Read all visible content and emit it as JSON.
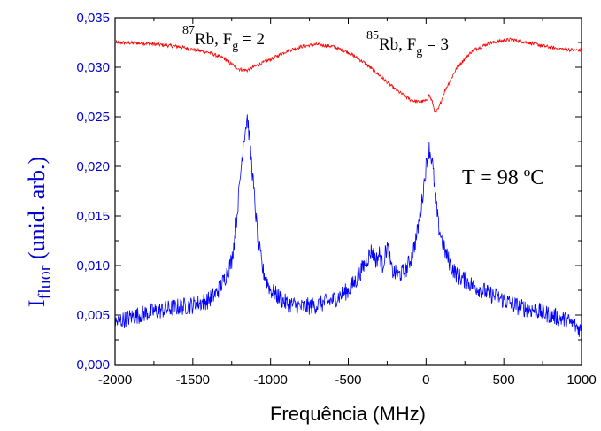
{
  "chart_data": {
    "type": "line",
    "title": "",
    "xlabel": "Frequência (MHz)",
    "ylabel": {
      "main": "I",
      "subscript": "fluor",
      "rest": " (unid. arb.)"
    },
    "xlim": [
      -2000,
      1000
    ],
    "ylim": [
      0.0,
      0.035
    ],
    "x_ticks": [
      {
        "value": -2000,
        "label": "-2000"
      },
      {
        "value": -1500,
        "label": "-1500"
      },
      {
        "value": -1000,
        "label": "-1000"
      },
      {
        "value": -500,
        "label": "-500"
      },
      {
        "value": 0,
        "label": "0"
      },
      {
        "value": 500,
        "label": "500"
      },
      {
        "value": 1000,
        "label": "1000"
      }
    ],
    "y_ticks": [
      {
        "value": 0.0,
        "label": "0,000"
      },
      {
        "value": 0.005,
        "label": "0,005"
      },
      {
        "value": 0.01,
        "label": "0,010"
      },
      {
        "value": 0.015,
        "label": "0,015"
      },
      {
        "value": 0.02,
        "label": "0,020"
      },
      {
        "value": 0.025,
        "label": "0,025"
      },
      {
        "value": 0.03,
        "label": "0,030"
      },
      {
        "value": 0.035,
        "label": "0,035"
      }
    ],
    "grid": false,
    "series": [
      {
        "color": "#ff0000",
        "points": [
          [
            -2000,
            0.0325
          ],
          [
            -1800,
            0.0324
          ],
          [
            -1600,
            0.0321
          ],
          [
            -1400,
            0.0315
          ],
          [
            -1300,
            0.0309
          ],
          [
            -1250,
            0.0303
          ],
          [
            -1200,
            0.0298
          ],
          [
            -1150,
            0.0297
          ],
          [
            -1100,
            0.0301
          ],
          [
            -1000,
            0.0308
          ],
          [
            -900,
            0.0316
          ],
          [
            -800,
            0.0321
          ],
          [
            -700,
            0.0323
          ],
          [
            -600,
            0.0321
          ],
          [
            -500,
            0.0315
          ],
          [
            -400,
            0.0305
          ],
          [
            -300,
            0.0292
          ],
          [
            -200,
            0.0278
          ],
          [
            -100,
            0.0267
          ],
          [
            -50,
            0.0265
          ],
          [
            0,
            0.0266
          ],
          [
            20,
            0.0272
          ],
          [
            40,
            0.0265
          ],
          [
            60,
            0.0254
          ],
          [
            80,
            0.0258
          ],
          [
            120,
            0.0276
          ],
          [
            200,
            0.03
          ],
          [
            300,
            0.0317
          ],
          [
            400,
            0.0324
          ],
          [
            500,
            0.0327
          ],
          [
            550,
            0.0328
          ],
          [
            650,
            0.0325
          ],
          [
            800,
            0.032
          ],
          [
            900,
            0.0318
          ],
          [
            1000,
            0.0317
          ]
        ]
      },
      {
        "color": "#0000ff",
        "points": [
          [
            -2000,
            0.0042
          ],
          [
            -1900,
            0.0048
          ],
          [
            -1800,
            0.0052
          ],
          [
            -1700,
            0.0055
          ],
          [
            -1600,
            0.0058
          ],
          [
            -1500,
            0.006
          ],
          [
            -1400,
            0.0065
          ],
          [
            -1350,
            0.0072
          ],
          [
            -1300,
            0.0085
          ],
          [
            -1250,
            0.0105
          ],
          [
            -1225,
            0.0135
          ],
          [
            -1200,
            0.018
          ],
          [
            -1175,
            0.0225
          ],
          [
            -1160,
            0.024
          ],
          [
            -1150,
            0.025
          ],
          [
            -1140,
            0.0235
          ],
          [
            -1120,
            0.02
          ],
          [
            -1100,
            0.016
          ],
          [
            -1080,
            0.0125
          ],
          [
            -1050,
            0.0095
          ],
          [
            -1000,
            0.0075
          ],
          [
            -900,
            0.0062
          ],
          [
            -800,
            0.0058
          ],
          [
            -700,
            0.006
          ],
          [
            -600,
            0.0065
          ],
          [
            -500,
            0.0075
          ],
          [
            -450,
            0.0085
          ],
          [
            -400,
            0.01
          ],
          [
            -350,
            0.0115
          ],
          [
            -320,
            0.0105
          ],
          [
            -300,
            0.0112
          ],
          [
            -280,
            0.01
          ],
          [
            -250,
            0.012
          ],
          [
            -220,
            0.0095
          ],
          [
            -180,
            0.009
          ],
          [
            -130,
            0.0095
          ],
          [
            -90,
            0.011
          ],
          [
            -60,
            0.013
          ],
          [
            -30,
            0.016
          ],
          [
            0,
            0.02
          ],
          [
            20,
            0.0218
          ],
          [
            40,
            0.0205
          ],
          [
            60,
            0.017
          ],
          [
            80,
            0.014
          ],
          [
            120,
            0.0115
          ],
          [
            160,
            0.01
          ],
          [
            200,
            0.009
          ],
          [
            300,
            0.008
          ],
          [
            400,
            0.0072
          ],
          [
            500,
            0.0065
          ],
          [
            600,
            0.0058
          ],
          [
            700,
            0.0055
          ],
          [
            800,
            0.005
          ],
          [
            900,
            0.0045
          ],
          [
            1000,
            0.0035
          ]
        ]
      }
    ],
    "annotations": {
      "label_87": {
        "mass": "87",
        "text": "Rb, F",
        "sub": "g",
        "tail": " = 2"
      },
      "label_85": {
        "mass": "85",
        "text": "Rb, F",
        "sub": "g",
        "tail": " = 3"
      },
      "temperature": "T = 98 ºC"
    }
  }
}
